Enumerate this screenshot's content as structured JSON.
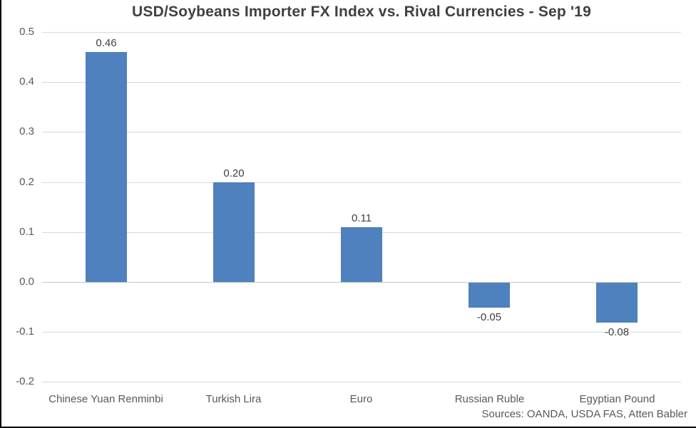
{
  "title": "USD/Soybeans Importer FX Index vs. Rival Currencies - Sep '19",
  "source_note": "Sources: OANDA, USDA FAS, Atten Babler",
  "colors": {
    "bar": "#4e81bd",
    "gridline": "#d9d9d9",
    "gridline_zero": "#c8c8c8",
    "axis_text": "#595959",
    "title_text": "#404040",
    "value_text": "#404040",
    "border": "#000000",
    "background": "#ffffff"
  },
  "chart_data": {
    "type": "bar",
    "title": "USD/Soybeans Importer FX Index vs. Rival Currencies - Sep '19",
    "categories": [
      "Chinese Yuan Renminbi",
      "Turkish Lira",
      "Euro",
      "Russian Ruble",
      "Egyptian Pound"
    ],
    "values": [
      0.46,
      0.2,
      0.11,
      -0.05,
      -0.08
    ],
    "value_labels": [
      "0.46",
      "0.20",
      "0.11",
      "-0.05",
      "-0.08"
    ],
    "xlabel": "",
    "ylabel": "",
    "ylim": [
      -0.2,
      0.5
    ],
    "yticks": [
      {
        "v": 0.5,
        "label": "0.5"
      },
      {
        "v": 0.4,
        "label": "0.4"
      },
      {
        "v": 0.3,
        "label": "0.3"
      },
      {
        "v": 0.2,
        "label": "0.2"
      },
      {
        "v": 0.1,
        "label": "0.1"
      },
      {
        "v": 0.0,
        "label": "0.0"
      },
      {
        "v": -0.1,
        "label": "-0.1"
      },
      {
        "v": -0.2,
        "label": "-0.2"
      }
    ],
    "grid": "horizontal",
    "legend": "none",
    "bar_color": "#4e81bd",
    "annotation": "Sources: OANDA, USDA FAS, Atten Babler"
  }
}
